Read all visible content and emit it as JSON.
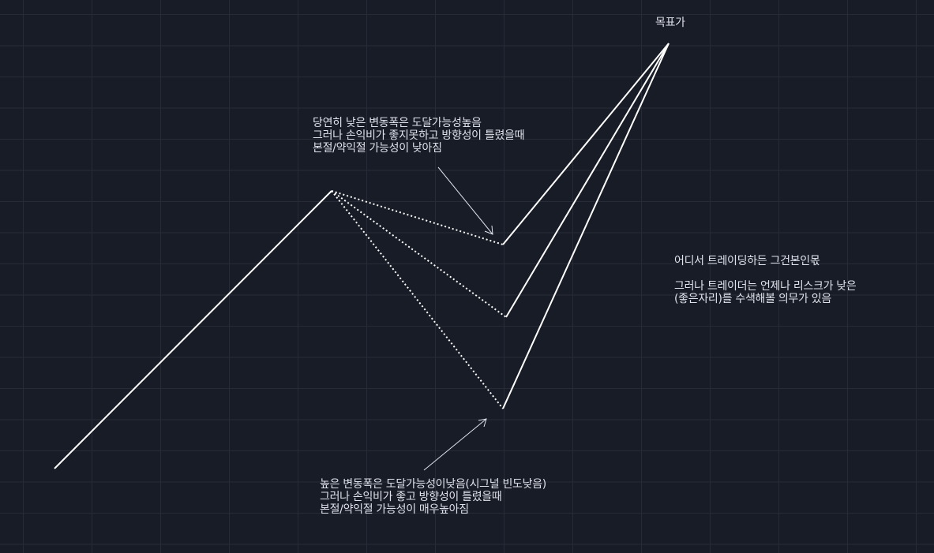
{
  "colors": {
    "background": "#181c27",
    "grid": "#272b37",
    "line": "#ffffff",
    "text": "#dfe2ea"
  },
  "target_label": "목표가",
  "note_top": {
    "lines": [
      "당연히 낮은 변동폭은 도달가능성높음",
      "그러나 손익비가 좋지못하고 방향성이 틀렸을때",
      "본절/약익절 가능성이 낮아짐"
    ]
  },
  "note_bottom": {
    "lines": [
      "높은 변동폭은 도달가능성이낮음(시그널 빈도낮음)",
      "그러나 손익비가 좋고 방향성이 틀렸을때",
      "본절/약익절 가능성이 매우높아짐"
    ]
  },
  "note_right": {
    "line1": "어디서 트레이딩하든 그건본인몫",
    "lines": [
      "그러나 트레이더는 언제나 리스크가 낮은",
      "(좋은자리)를 수색해볼 의무가 있음"
    ]
  }
}
